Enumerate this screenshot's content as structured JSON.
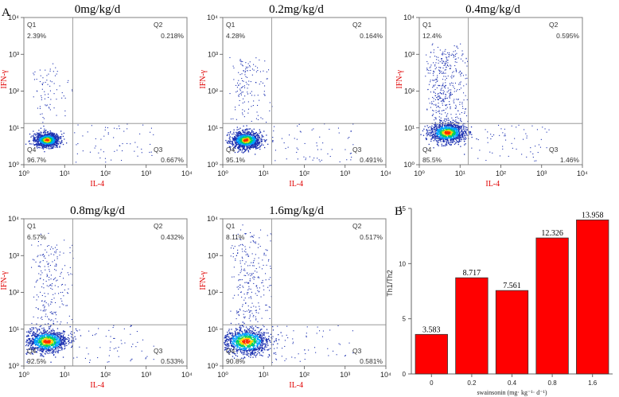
{
  "figure": {
    "panel_a_letter": "A",
    "panel_b_letter": "B"
  },
  "chart_data": [
    {
      "type": "scatter",
      "title": "0mg/kg/d",
      "xlabel": "IL-4",
      "ylabel": "IFN-γ",
      "scale": "log",
      "xlim": [
        1,
        10000
      ],
      "ylim": [
        1,
        10000
      ],
      "quadrants": [
        {
          "name": "Q1",
          "value": "2.39%"
        },
        {
          "name": "Q2",
          "value": "0.218%"
        },
        {
          "name": "Q3",
          "value": "0.667%"
        },
        {
          "name": "Q4",
          "value": "96.7%"
        }
      ],
      "ticks": [
        "10⁰",
        "10¹",
        "10²",
        "10³",
        "10⁴"
      ]
    },
    {
      "type": "scatter",
      "title": "0.2mg/kg/d",
      "xlabel": "IL-4",
      "ylabel": "IFN-γ",
      "scale": "log",
      "xlim": [
        1,
        10000
      ],
      "ylim": [
        1,
        10000
      ],
      "quadrants": [
        {
          "name": "Q1",
          "value": "4.28%"
        },
        {
          "name": "Q2",
          "value": "0.164%"
        },
        {
          "name": "Q3",
          "value": "0.491%"
        },
        {
          "name": "Q4",
          "value": "95.1%"
        }
      ],
      "ticks": [
        "10⁰",
        "10¹",
        "10²",
        "10³",
        "10⁴"
      ]
    },
    {
      "type": "scatter",
      "title": "0.4mg/kg/d",
      "xlabel": "IL-4",
      "ylabel": "IFN-γ",
      "scale": "log",
      "xlim": [
        1,
        10000
      ],
      "ylim": [
        1,
        10000
      ],
      "quadrants": [
        {
          "name": "Q1",
          "value": "12.4%"
        },
        {
          "name": "Q2",
          "value": "0.595%"
        },
        {
          "name": "Q3",
          "value": "1.46%"
        },
        {
          "name": "Q4",
          "value": "85.5%"
        }
      ],
      "ticks": [
        "10⁰",
        "10¹",
        "10²",
        "10³",
        "10⁴"
      ]
    },
    {
      "type": "scatter",
      "title": "0.8mg/kg/d",
      "xlabel": "IL-4",
      "ylabel": "IFN-γ",
      "scale": "log",
      "xlim": [
        1,
        10000
      ],
      "ylim": [
        1,
        10000
      ],
      "quadrants": [
        {
          "name": "Q1",
          "value": "6.57%"
        },
        {
          "name": "Q2",
          "value": "0.432%"
        },
        {
          "name": "Q3",
          "value": "0.533%"
        },
        {
          "name": "Q4",
          "value": "92.5%"
        }
      ],
      "ticks": [
        "10⁰",
        "10¹",
        "10²",
        "10³",
        "10⁴"
      ]
    },
    {
      "type": "scatter",
      "title": "1.6mg/kg/d",
      "xlabel": "IL-4",
      "ylabel": "IFN-γ",
      "scale": "log",
      "xlim": [
        1,
        10000
      ],
      "ylim": [
        1,
        10000
      ],
      "quadrants": [
        {
          "name": "Q1",
          "value": "8.11%"
        },
        {
          "name": "Q2",
          "value": "0.517%"
        },
        {
          "name": "Q3",
          "value": "0.581%"
        },
        {
          "name": "Q4",
          "value": "90.8%"
        }
      ],
      "ticks": [
        "10⁰",
        "10¹",
        "10²",
        "10³",
        "10⁴"
      ]
    },
    {
      "type": "bar",
      "title": "",
      "categories": [
        "0",
        "0.2",
        "0.4",
        "0.8",
        "1.6"
      ],
      "values": [
        3.583,
        8.717,
        7.561,
        12.326,
        13.958
      ],
      "data_labels": [
        "3.583",
        "8.717",
        "7.561",
        "12.326",
        "13.958"
      ],
      "xlabel": "swainsonin (mg· kg⁻¹· d⁻¹)",
      "ylabel": "Th1/Th2",
      "ylim": [
        0,
        15
      ],
      "yticks": [
        0,
        5,
        10,
        15
      ],
      "bar_color": "#ff0000",
      "grid": false
    }
  ]
}
